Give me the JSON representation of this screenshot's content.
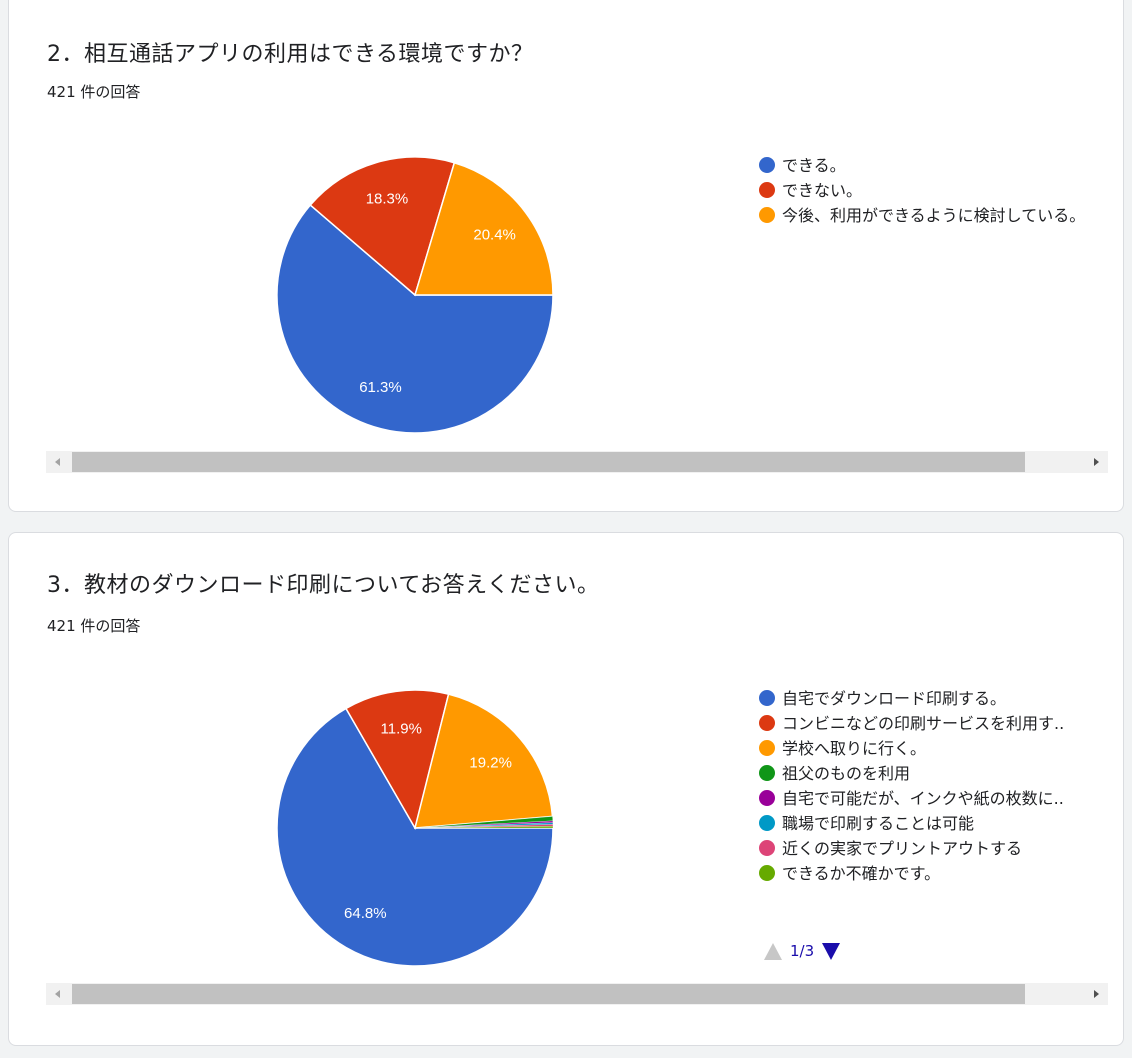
{
  "questions": [
    {
      "title": "2．相互通話アプリの利用はできる環境ですか？",
      "response_count": "421 件の回答"
    },
    {
      "title": "3．教材のダウンロード印刷についてお答えください。",
      "response_count": "421 件の回答",
      "pager": {
        "text": "1/3"
      }
    }
  ],
  "chart_data": [
    {
      "type": "pie",
      "title": "2．相互通話アプリの利用はできる環境ですか？",
      "legend_position": "right",
      "slices": [
        {
          "label": "できる。",
          "value": 61.3,
          "display": "61.3%",
          "color": "#3366cc"
        },
        {
          "label": "できない。",
          "value": 18.3,
          "display": "18.3%",
          "color": "#dc3912"
        },
        {
          "label": "今後、利用ができるように検討している。",
          "value": 20.4,
          "display": "20.4%",
          "color": "#ff9900"
        }
      ]
    },
    {
      "type": "pie",
      "title": "3．教材のダウンロード印刷についてお答えください。",
      "legend_position": "right",
      "slices": [
        {
          "label": "自宅でダウンロード印刷する。",
          "value": 64.8,
          "display": "64.8%",
          "color": "#3366cc"
        },
        {
          "label": "コンビニなどの印刷サービスを利用す..",
          "value": 11.9,
          "display": "11.9%",
          "color": "#dc3912"
        },
        {
          "label": "学校へ取りに行く。",
          "value": 19.2,
          "display": "19.2%",
          "color": "#ff9900"
        },
        {
          "label": "祖父のものを利用",
          "value": 0.5,
          "display": "",
          "color": "#109618"
        },
        {
          "label": "自宅で可能だが、インクや紙の枚数に..",
          "value": 0.2,
          "display": "",
          "color": "#990099"
        },
        {
          "label": "職場で印刷することは可能",
          "value": 0.2,
          "display": "",
          "color": "#0099c6"
        },
        {
          "label": "近くの実家でプリントアウトする",
          "value": 0.2,
          "display": "",
          "color": "#dd4477"
        },
        {
          "label": "できるか不確かです。",
          "value": 0.2,
          "display": "",
          "color": "#66aa00"
        }
      ]
    }
  ]
}
